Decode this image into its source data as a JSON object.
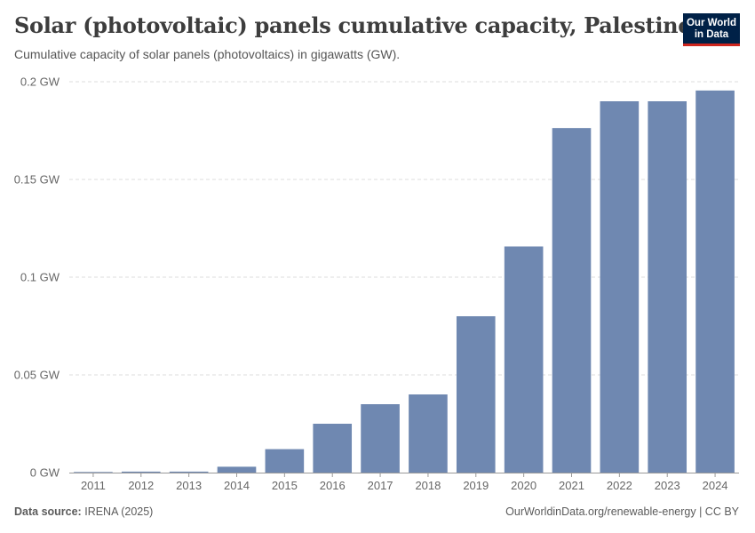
{
  "header": {
    "title": "Solar (photovoltaic) panels cumulative capacity, Palestine",
    "subtitle": "Cumulative capacity of solar panels (photovoltaics) in gigawatts (GW)."
  },
  "logo": {
    "line1": "Our World",
    "line2": "in Data"
  },
  "footer": {
    "source_label": "Data source:",
    "source_value": "IRENA (2025)",
    "credit": "OurWorldinData.org/renewable-energy | CC BY"
  },
  "colors": {
    "bar": "#6f88b1",
    "grid": "#dddddd",
    "axis": "#999999",
    "logo_bg": "#002147",
    "logo_accent": "#ce261e"
  },
  "chart_data": {
    "type": "bar",
    "title": "Solar (photovoltaic) panels cumulative capacity, Palestine",
    "unit": "GW",
    "categories": [
      "2011",
      "2012",
      "2013",
      "2014",
      "2015",
      "2016",
      "2017",
      "2018",
      "2019",
      "2020",
      "2021",
      "2022",
      "2023",
      "2024"
    ],
    "values": [
      0.0003,
      0.0005,
      0.0005,
      0.003,
      0.012,
      0.025,
      0.035,
      0.04,
      0.08,
      0.1157,
      0.1763,
      0.19,
      0.19,
      0.1955
    ],
    "ylim": [
      0,
      0.2
    ],
    "yticks": [
      0,
      0.05,
      0.1,
      0.15,
      0.2
    ],
    "ytick_labels": [
      "0 GW",
      "0.05 GW",
      "0.1 GW",
      "0.15 GW",
      "0.2 GW"
    ],
    "grid": true,
    "legend": "none"
  }
}
